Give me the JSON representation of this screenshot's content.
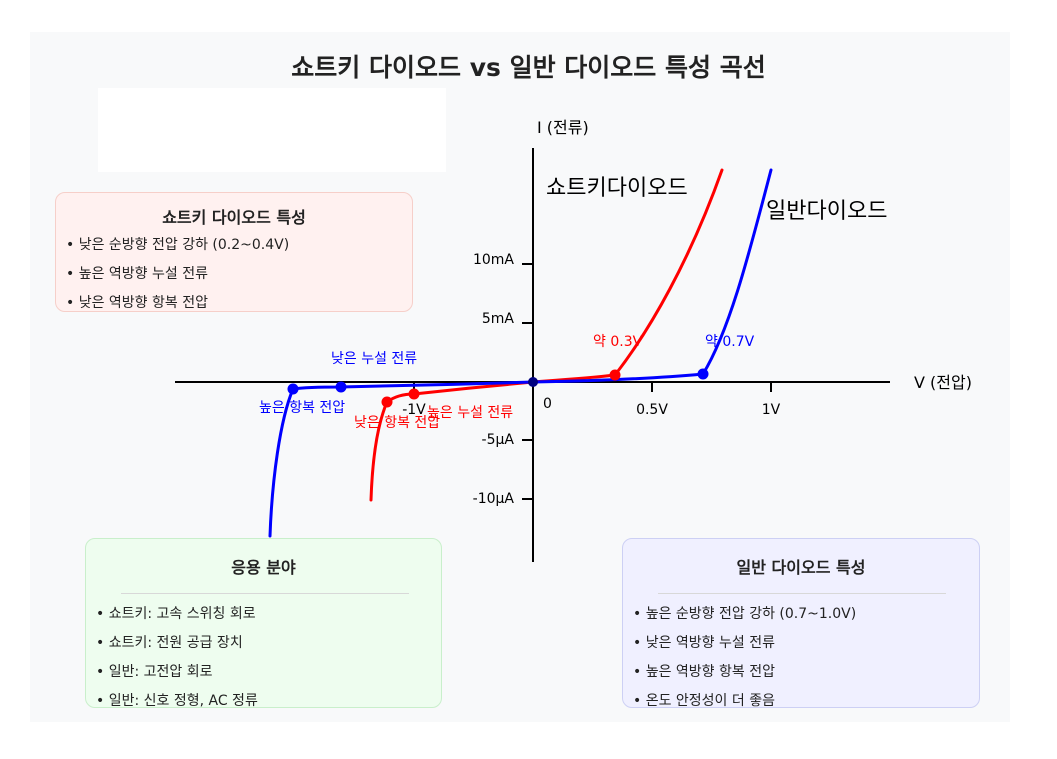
{
  "title": "쇼트키 다이오드 vs 일반 다이오드 특성 곡선",
  "axes": {
    "x_label": "V (전압)",
    "y_label": "I (전류)",
    "origin": "0",
    "x_ticks": [
      "-1V",
      "0.5V",
      "1V"
    ],
    "y_ticks": [
      "10mA",
      "5mA",
      "-5μA",
      "-10μA"
    ]
  },
  "curves": {
    "schottky": {
      "label": "쇼트키다이오드",
      "color": "#ff0000"
    },
    "normal": {
      "label": "일반다이오드",
      "color": "#0000ff"
    }
  },
  "annotations": {
    "schottky_forward": "약 0.3V",
    "normal_forward": "약 0.7V",
    "normal_leakage": "낮은 누설 전류",
    "normal_breakdown": "높은 항복 전압",
    "schottky_leakage": "높은 누설 전류",
    "schottky_breakdown": "낮은 항복 전압"
  },
  "chart_data": {
    "type": "line",
    "xlabel": "V (전압)",
    "ylabel": "I (전류)",
    "series": [
      {
        "name": "쇼트키다이오드",
        "color": "#ff0000",
        "key_points": [
          {
            "x": 0.3,
            "label": "약 0.3V"
          },
          {
            "x": -1,
            "label": "높은 누설 전류"
          },
          {
            "x": -1.2,
            "label": "낮은 항복 전압"
          }
        ]
      },
      {
        "name": "일반다이오드",
        "color": "#0000ff",
        "key_points": [
          {
            "x": 0.7,
            "label": "약 0.7V"
          },
          {
            "x": -1.6,
            "label": "낮은 누설 전류"
          },
          {
            "x": -2.0,
            "label": "높은 항복 전압"
          }
        ]
      }
    ]
  },
  "schottky_card": {
    "title": "쇼트키 다이오드 특성",
    "items": [
      "• 낮은 순방향 전압 강하 (0.2~0.4V)",
      "• 높은 역방향 누설 전류",
      "• 낮은 역방향 항복 전압"
    ]
  },
  "app_card": {
    "title": "응용 분야",
    "items": [
      "• 쇼트키: 고속 스위칭 회로",
      "• 쇼트키: 전원 공급 장치",
      "• 일반: 고전압 회로",
      "• 일반: 신호 정형, AC 정류"
    ]
  },
  "normal_card": {
    "title": "일반 다이오드 특성",
    "items": [
      "• 높은 순방향 전압 강하 (0.7~1.0V)",
      "• 낮은 역방향 누설 전류",
      "• 높은 역방향 항복 전압",
      "• 온도 안정성이 더 좋음"
    ]
  }
}
